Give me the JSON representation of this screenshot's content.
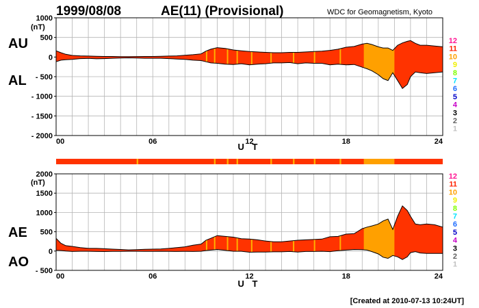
{
  "header": {
    "date": "1999/08/08",
    "title": "AE(11) (Provisional)",
    "source": "WDC for Geomagnetism, Kyoto"
  },
  "footer": {
    "created": "[Created at 2010-07-13 10:24UT]"
  },
  "colors": {
    "main_fill": "#ff3300",
    "alt_fill": "#ffa000",
    "stripe": "#ffb000",
    "grid": "#b4b4b4",
    "curve": "#000000"
  },
  "station_scale": [
    {
      "label": "12",
      "color": "#ff1493"
    },
    {
      "label": "11",
      "color": "#ff2200"
    },
    {
      "label": "10",
      "color": "#ffa000"
    },
    {
      "label": "9",
      "color": "#f0f000"
    },
    {
      "label": "8",
      "color": "#80ff00"
    },
    {
      "label": "7",
      "color": "#00e0ff"
    },
    {
      "label": "6",
      "color": "#1e6cff"
    },
    {
      "label": "5",
      "color": "#0000c8"
    },
    {
      "label": "4",
      "color": "#c800c8"
    },
    {
      "label": "3",
      "color": "#000000"
    },
    {
      "label": "2",
      "color": "#606060"
    },
    {
      "label": "1",
      "color": "#c0c0c0"
    }
  ],
  "chart_data": [
    {
      "id": "au_al",
      "type": "area",
      "upper_label": "AU",
      "lower_label": "AL",
      "unit": "(nT)",
      "xlabel": "U T",
      "xticks": [
        "00",
        "06",
        "12",
        "18",
        "24"
      ],
      "xlim": [
        0,
        24
      ],
      "ylim": [
        -2000,
        1000
      ],
      "yticks": [
        {
          "v": 1000,
          "t": "1000"
        },
        {
          "v": 500,
          "t": "500"
        },
        {
          "v": 0,
          "t": "0"
        },
        {
          "v": -500,
          "t": "- 500"
        },
        {
          "v": -1000,
          "t": "- 1000"
        },
        {
          "v": -1500,
          "t": "- 1500"
        },
        {
          "v": -2000,
          "t": "- 2000"
        }
      ],
      "grid": true,
      "upper_series": {
        "name": "AU",
        "x": [
          0,
          0.3,
          0.6,
          1,
          1.5,
          2,
          2.5,
          3,
          3.5,
          4,
          4.5,
          5,
          5.5,
          6,
          6.5,
          7,
          7.5,
          8,
          8.5,
          9,
          9.3,
          9.6,
          10,
          10.5,
          11,
          11.5,
          12,
          12.5,
          13,
          13.5,
          14,
          14.5,
          15,
          15.5,
          16,
          16.5,
          17,
          17.5,
          18,
          18.5,
          19,
          19.3,
          19.6,
          20,
          20.3,
          20.6,
          20.9,
          21.2,
          21.5,
          21.8,
          22,
          22.3,
          22.6,
          23,
          23.5,
          24
        ],
        "values": [
          160,
          110,
          70,
          40,
          30,
          25,
          20,
          15,
          15,
          10,
          10,
          12,
          15,
          15,
          20,
          25,
          30,
          45,
          60,
          80,
          150,
          200,
          240,
          220,
          180,
          160,
          140,
          130,
          120,
          110,
          110,
          120,
          120,
          130,
          140,
          150,
          170,
          200,
          250,
          270,
          330,
          350,
          320,
          260,
          230,
          230,
          170,
          300,
          360,
          400,
          420,
          350,
          300,
          300,
          280,
          260
        ]
      },
      "lower_series": {
        "name": "AL",
        "x": [
          0,
          0.3,
          0.6,
          1,
          1.5,
          2,
          2.5,
          3,
          3.5,
          4,
          4.5,
          5,
          5.5,
          6,
          6.5,
          7,
          7.5,
          8,
          8.5,
          9,
          9.3,
          9.6,
          10,
          10.5,
          11,
          11.5,
          12,
          12.5,
          13,
          13.5,
          14,
          14.5,
          15,
          15.5,
          16,
          16.5,
          17,
          17.5,
          18,
          18.5,
          19,
          19.3,
          19.6,
          20,
          20.3,
          20.6,
          20.9,
          21.2,
          21.5,
          21.8,
          22,
          22.3,
          22.6,
          23,
          23.5,
          24
        ],
        "values": [
          -120,
          -80,
          -70,
          -60,
          -40,
          -35,
          -45,
          -40,
          -30,
          -25,
          -20,
          -25,
          -30,
          -30,
          -30,
          -40,
          -50,
          -60,
          -80,
          -90,
          -120,
          -150,
          -160,
          -180,
          -190,
          -170,
          -200,
          -180,
          -170,
          -150,
          -150,
          -140,
          -170,
          -150,
          -160,
          -160,
          -200,
          -180,
          -200,
          -190,
          -260,
          -300,
          -350,
          -450,
          -550,
          -600,
          -400,
          -600,
          -800,
          -700,
          -500,
          -380,
          -400,
          -420,
          -400,
          -380
        ]
      },
      "stripe_hours": [
        9.3,
        9.8,
        10.6,
        11.2,
        12.1,
        13.3,
        14.7,
        16.0,
        17.6
      ]
    },
    {
      "id": "ae_ao",
      "type": "area",
      "upper_label": "AE",
      "lower_label": "AO",
      "unit": "(nT)",
      "xlabel": "U T",
      "xticks": [
        "00",
        "06",
        "12",
        "18",
        "24"
      ],
      "xlim": [
        0,
        24
      ],
      "ylim": [
        -500,
        2000
      ],
      "yticks": [
        {
          "v": 2000,
          "t": "2000"
        },
        {
          "v": 1500,
          "t": "1500"
        },
        {
          "v": 1000,
          "t": "1000"
        },
        {
          "v": 500,
          "t": "500"
        },
        {
          "v": 0,
          "t": "0"
        },
        {
          "v": -500,
          "t": "- 500"
        }
      ],
      "grid": true,
      "upper_series": {
        "name": "AE",
        "x": [
          0,
          0.3,
          0.6,
          1,
          1.5,
          2,
          2.5,
          3,
          3.5,
          4,
          4.5,
          5,
          5.5,
          6,
          6.5,
          7,
          7.5,
          8,
          8.5,
          9,
          9.3,
          9.6,
          10,
          10.5,
          11,
          11.5,
          12,
          12.5,
          13,
          13.5,
          14,
          14.5,
          15,
          15.5,
          16,
          16.5,
          17,
          17.5,
          18,
          18.5,
          19,
          19.3,
          19.6,
          20,
          20.3,
          20.6,
          20.9,
          21.2,
          21.5,
          21.8,
          22,
          22.3,
          22.6,
          23,
          23.5,
          24
        ],
        "values": [
          330,
          200,
          140,
          120,
          90,
          70,
          70,
          60,
          50,
          40,
          30,
          35,
          45,
          50,
          55,
          70,
          90,
          110,
          150,
          180,
          280,
          330,
          400,
          380,
          360,
          320,
          310,
          290,
          260,
          240,
          240,
          260,
          280,
          290,
          300,
          310,
          370,
          380,
          440,
          450,
          580,
          620,
          650,
          700,
          780,
          830,
          560,
          900,
          1170,
          1050,
          900,
          700,
          680,
          700,
          680,
          620
        ]
      },
      "lower_series": {
        "name": "AO",
        "x": [
          0,
          0.3,
          0.6,
          1,
          1.5,
          2,
          2.5,
          3,
          3.5,
          4,
          4.5,
          5,
          5.5,
          6,
          6.5,
          7,
          7.5,
          8,
          8.5,
          9,
          9.3,
          9.6,
          10,
          10.5,
          11,
          11.5,
          12,
          12.5,
          13,
          13.5,
          14,
          14.5,
          15,
          15.5,
          16,
          16.5,
          17,
          17.5,
          18,
          18.5,
          19,
          19.3,
          19.6,
          20,
          20.3,
          20.6,
          20.9,
          21.2,
          21.5,
          21.8,
          22,
          22.3,
          22.6,
          23,
          23.5,
          24
        ],
        "values": [
          20,
          15,
          0,
          -10,
          -5,
          -5,
          -10,
          -12,
          -8,
          -8,
          -5,
          -5,
          -8,
          -8,
          -5,
          -8,
          -10,
          -8,
          -10,
          -5,
          15,
          25,
          40,
          20,
          -5,
          -5,
          -30,
          -25,
          -25,
          -20,
          -20,
          -10,
          -25,
          -10,
          -10,
          -5,
          -15,
          10,
          25,
          40,
          35,
          25,
          -15,
          -75,
          -160,
          -190,
          -115,
          -150,
          -220,
          -150,
          -40,
          -15,
          -50,
          -60,
          -60,
          -60
        ]
      },
      "stripe_hours": [
        9.3,
        9.8,
        10.6,
        11.2,
        12.1,
        13.3,
        14.7,
        16.0,
        17.6
      ]
    }
  ],
  "station_bar": {
    "type": "heatmap",
    "base_color": "#ff3300",
    "segments": [
      {
        "start": 19.1,
        "end": 21.0,
        "color": "#ffa000"
      },
      {
        "start": 5.0,
        "end": 5.1,
        "color": "#ffb000"
      },
      {
        "start": 9.8,
        "end": 9.9,
        "color": "#ffb000"
      },
      {
        "start": 10.6,
        "end": 10.7,
        "color": "#ffb000"
      },
      {
        "start": 11.2,
        "end": 11.3,
        "color": "#ffb000"
      },
      {
        "start": 13.3,
        "end": 13.4,
        "color": "#ffb000"
      },
      {
        "start": 14.7,
        "end": 14.8,
        "color": "#ffb000"
      },
      {
        "start": 16.0,
        "end": 16.1,
        "color": "#ffb000"
      },
      {
        "start": 17.6,
        "end": 17.7,
        "color": "#ffb000"
      }
    ]
  }
}
